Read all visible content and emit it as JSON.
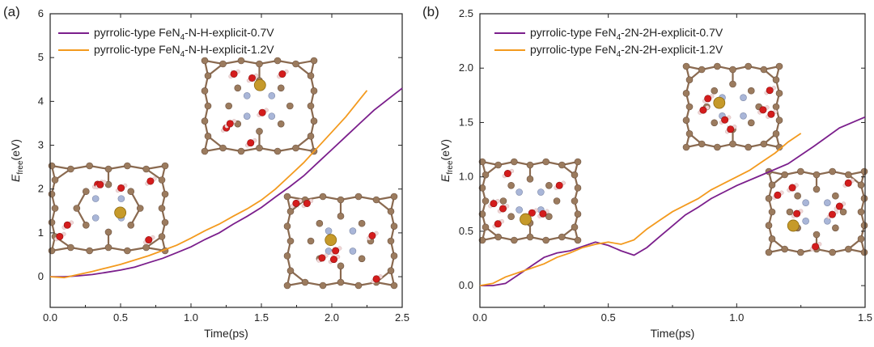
{
  "chart_data": [
    {
      "type": "line",
      "panel_label": "(a)",
      "xlabel": "Time(ps)",
      "ylabel": {
        "main": "E",
        "sub": "free",
        "unit": "(eV)"
      },
      "xlim": [
        0,
        2.5
      ],
      "ylim": [
        -0.7,
        6
      ],
      "xticks": [
        0.0,
        0.5,
        1.0,
        1.5,
        2.0,
        2.5
      ],
      "xtick_labels": [
        "0.0",
        "0.5",
        "1.0",
        "1.5",
        "2.0",
        "2.5"
      ],
      "yticks": [
        0,
        1,
        2,
        3,
        4,
        5,
        6
      ],
      "ytick_labels": [
        "0",
        "1",
        "2",
        "3",
        "4",
        "5",
        "6"
      ],
      "grid": false,
      "legend_position": "top-left",
      "series": [
        {
          "name": "pyrrolic-type FeN4-N-H-explicit-0.7V",
          "legend": {
            "pre": "pyrrolic-type FeN",
            "sub": "4",
            "post": "-N-H-explicit-0.7V"
          },
          "color": "#7b1f8c",
          "x": [
            0,
            0.1,
            0.2,
            0.3,
            0.4,
            0.5,
            0.6,
            0.7,
            0.8,
            0.9,
            1.0,
            1.1,
            1.2,
            1.3,
            1.4,
            1.5,
            1.6,
            1.7,
            1.8,
            1.9,
            2.0,
            2.1,
            2.2,
            2.3,
            2.4,
            2.5
          ],
          "y": [
            0.0,
            0.0,
            0.02,
            0.05,
            0.1,
            0.15,
            0.22,
            0.32,
            0.42,
            0.55,
            0.68,
            0.85,
            1.0,
            1.2,
            1.38,
            1.58,
            1.82,
            2.05,
            2.3,
            2.6,
            2.9,
            3.2,
            3.5,
            3.8,
            4.05,
            4.3
          ]
        },
        {
          "name": "pyrrolic-type FeN4-N-H-explicit-1.2V",
          "legend": {
            "pre": "pyrrolic-type FeN",
            "sub": "4",
            "post": "-N-H-explicit-1.2V"
          },
          "color": "#f39a1e",
          "x": [
            0,
            0.1,
            0.2,
            0.3,
            0.4,
            0.5,
            0.6,
            0.7,
            0.8,
            0.9,
            1.0,
            1.1,
            1.2,
            1.3,
            1.4,
            1.5,
            1.6,
            1.7,
            1.8,
            1.9,
            2.0,
            2.1,
            2.2,
            2.25
          ],
          "y": [
            0.0,
            -0.02,
            0.05,
            0.12,
            0.2,
            0.28,
            0.38,
            0.48,
            0.6,
            0.72,
            0.88,
            1.05,
            1.2,
            1.38,
            1.55,
            1.75,
            2.0,
            2.3,
            2.6,
            2.95,
            3.3,
            3.65,
            4.05,
            4.25
          ]
        }
      ]
    },
    {
      "type": "line",
      "panel_label": "(b)",
      "xlabel": "Time(ps)",
      "ylabel": {
        "main": "E",
        "sub": "free",
        "unit": "(eV)"
      },
      "xlim": [
        0,
        1.5
      ],
      "ylim": [
        -0.2,
        2.5
      ],
      "xticks": [
        0.0,
        0.5,
        1.0,
        1.5
      ],
      "xtick_labels": [
        "0.0",
        "0.5",
        "1.0",
        "1.5"
      ],
      "yticks": [
        0.0,
        0.5,
        1.0,
        1.5,
        2.0,
        2.5
      ],
      "ytick_labels": [
        "0.0",
        "0.5",
        "1.0",
        "1.5",
        "2.0",
        "2.5"
      ],
      "grid": false,
      "legend_position": "top-left",
      "series": [
        {
          "name": "pyrrolic-type FeN4-2N-2H-explicit-0.7V",
          "legend": {
            "pre": "pyrrolic-type FeN",
            "sub": "4",
            "post": "-2N-2H-explicit-0.7V"
          },
          "color": "#7b1f8c",
          "x": [
            0,
            0.05,
            0.1,
            0.15,
            0.2,
            0.25,
            0.3,
            0.35,
            0.4,
            0.45,
            0.5,
            0.55,
            0.6,
            0.65,
            0.7,
            0.75,
            0.8,
            0.85,
            0.9,
            0.95,
            1.0,
            1.1,
            1.2,
            1.3,
            1.4,
            1.5
          ],
          "y": [
            0.0,
            0.0,
            0.02,
            0.1,
            0.18,
            0.26,
            0.3,
            0.32,
            0.36,
            0.4,
            0.37,
            0.32,
            0.28,
            0.35,
            0.45,
            0.55,
            0.65,
            0.72,
            0.8,
            0.86,
            0.92,
            1.02,
            1.12,
            1.28,
            1.45,
            1.55
          ]
        },
        {
          "name": "pyrrolic-type FeN4-2N-2H-explicit-1.2V",
          "legend": {
            "pre": "pyrrolic-type FeN",
            "sub": "4",
            "post": "-2N-2H-explicit-1.2V"
          },
          "color": "#f39a1e",
          "x": [
            0,
            0.05,
            0.1,
            0.15,
            0.2,
            0.25,
            0.3,
            0.35,
            0.4,
            0.45,
            0.5,
            0.55,
            0.6,
            0.65,
            0.7,
            0.75,
            0.8,
            0.85,
            0.9,
            0.95,
            1.0,
            1.05,
            1.1,
            1.15,
            1.2,
            1.25
          ],
          "y": [
            0.0,
            0.02,
            0.08,
            0.12,
            0.16,
            0.2,
            0.26,
            0.3,
            0.35,
            0.38,
            0.4,
            0.38,
            0.42,
            0.52,
            0.6,
            0.68,
            0.74,
            0.8,
            0.88,
            0.94,
            1.0,
            1.06,
            1.14,
            1.22,
            1.32,
            1.4
          ]
        }
      ]
    }
  ],
  "insets": {
    "panel_a": [
      {
        "name": "inset-molecule-a-left",
        "label": ""
      },
      {
        "name": "inset-molecule-a-top",
        "label": ""
      },
      {
        "name": "inset-molecule-a-right",
        "label": ""
      }
    ],
    "panel_b": [
      {
        "name": "inset-molecule-b-left",
        "label": ""
      },
      {
        "name": "inset-molecule-b-top",
        "label": ""
      },
      {
        "name": "inset-molecule-b-right",
        "label": ""
      }
    ]
  },
  "atom_colors": {
    "carbon": "#9b7b5e",
    "oxygen": "#d41c1c",
    "nitrogen": "#a9b6d8",
    "hydrogen": "#f1d6d6",
    "iron": "#c69a2a"
  }
}
